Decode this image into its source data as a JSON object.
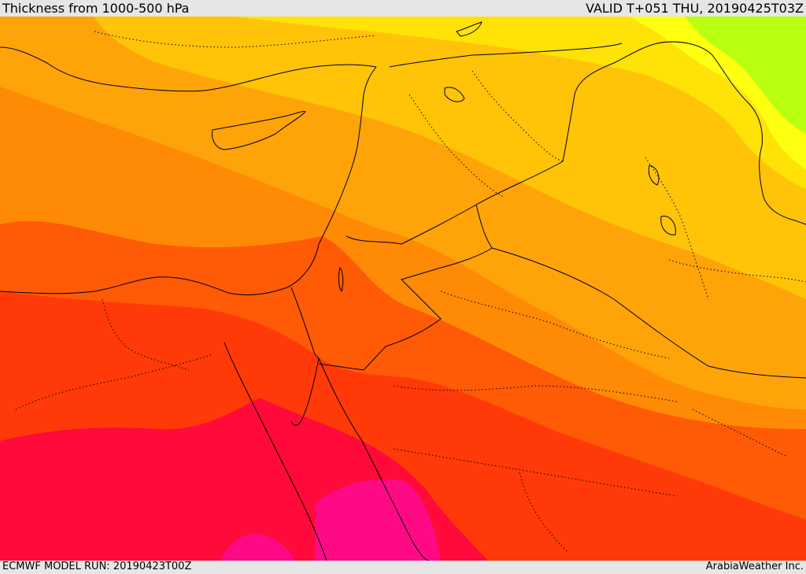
{
  "header": {
    "title": "Thickness from 1000-500 hPa",
    "valid": "VALID T+051 THU, 20190425T03Z"
  },
  "footer": {
    "model_run": "ECMWF MODEL RUN: 20190423T00Z",
    "credit": "ArabiaWeather Inc."
  },
  "map": {
    "field": "1000-500 hPa thickness",
    "fill_colors": {
      "warmest": "#ff0a86",
      "very_warm": "#ff0a3a",
      "warm": "#ff3a08",
      "mild_warm": "#ff5a06",
      "mild": "#ff8a06",
      "mild_cool": "#ffa408",
      "cool": "#ffc408",
      "cooler": "#ffe208",
      "coolest_yellow": "#ffff10",
      "green": "#b8ff10"
    },
    "border_color": "#000000"
  }
}
